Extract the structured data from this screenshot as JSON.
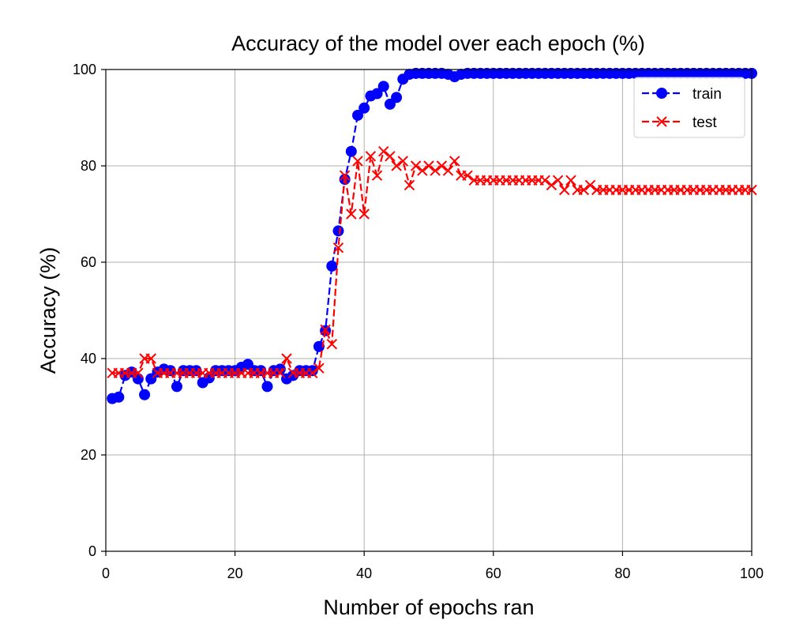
{
  "chart_data": {
    "type": "line",
    "title": "Accuracy of the model over each epoch (%)",
    "xlabel": "Number of epochs ran",
    "ylabel": "Accuracy (%)",
    "xlim": [
      0,
      100
    ],
    "ylim": [
      0,
      100
    ],
    "xticks": [
      0,
      20,
      40,
      60,
      80,
      100
    ],
    "yticks": [
      0,
      20,
      40,
      60,
      80,
      100
    ],
    "grid": true,
    "legend_position": "top-right",
    "x": [
      1,
      2,
      3,
      4,
      5,
      6,
      7,
      8,
      9,
      10,
      11,
      12,
      13,
      14,
      15,
      16,
      17,
      18,
      19,
      20,
      21,
      22,
      23,
      24,
      25,
      26,
      27,
      28,
      29,
      30,
      31,
      32,
      33,
      34,
      35,
      36,
      37,
      38,
      39,
      40,
      41,
      42,
      43,
      44,
      45,
      46,
      47,
      48,
      49,
      50,
      51,
      52,
      53,
      54,
      55,
      56,
      57,
      58,
      59,
      60,
      61,
      62,
      63,
      64,
      65,
      66,
      67,
      68,
      69,
      70,
      71,
      72,
      73,
      74,
      75,
      76,
      77,
      78,
      79,
      80,
      81,
      82,
      83,
      84,
      85,
      86,
      87,
      88,
      89,
      90,
      91,
      92,
      93,
      94,
      95,
      96,
      97,
      98,
      99,
      100
    ],
    "series": [
      {
        "name": "train",
        "color": "#0000ff",
        "marker": "circle",
        "values": [
          31.7,
          32,
          36.5,
          37.2,
          35.8,
          32.5,
          35.8,
          37.2,
          37.8,
          37.5,
          34.2,
          37.5,
          37.5,
          37.5,
          35,
          36,
          37.5,
          37.5,
          37.5,
          37.5,
          38.2,
          38.8,
          37.5,
          37.5,
          34.2,
          37.5,
          37.8,
          35.8,
          36.5,
          37.5,
          37.5,
          37.5,
          42.5,
          45.8,
          59.2,
          66.5,
          77.2,
          83,
          90.5,
          92,
          94.5,
          95,
          96.5,
          92.8,
          94.2,
          98,
          99,
          99.2,
          99.2,
          99.2,
          99.2,
          99.2,
          99,
          98.5,
          99,
          99.2,
          99.2,
          99.2,
          99.2,
          99.2,
          99.2,
          99.2,
          99.2,
          99.2,
          99.2,
          99.2,
          99.2,
          99.2,
          99.2,
          99.2,
          99.2,
          99.2,
          99.2,
          99.2,
          99.2,
          99.2,
          99.2,
          99.2,
          99.2,
          99.2,
          99.2,
          99.2,
          99.2,
          99.2,
          99.2,
          99.2,
          99.2,
          99.2,
          99.2,
          99.2,
          99.2,
          99.2,
          99.2,
          99.2,
          99.2,
          99.2,
          99.2,
          99.2,
          99.2,
          99.2
        ]
      },
      {
        "name": "test",
        "color": "#ff0000",
        "marker": "x",
        "values": [
          37,
          37,
          37,
          37,
          37,
          40,
          40,
          37,
          37,
          37,
          37,
          37,
          37,
          37,
          37,
          37,
          37,
          37,
          37,
          37,
          37,
          37,
          37,
          37,
          37,
          37,
          37,
          40,
          37,
          37,
          37,
          37,
          38,
          46,
          43,
          63,
          78,
          70,
          81,
          70,
          82,
          78,
          83,
          82,
          80,
          81,
          76,
          80,
          79,
          80,
          79,
          80,
          79,
          81,
          78,
          78,
          77,
          77,
          77,
          77,
          77,
          77,
          77,
          77,
          77,
          77,
          77,
          77,
          76,
          77,
          75,
          77,
          75,
          75,
          76,
          75,
          75,
          75,
          75,
          75,
          75,
          75,
          75,
          75,
          75,
          75,
          75,
          75,
          75,
          75,
          75,
          75,
          75,
          75,
          75,
          75,
          75,
          75,
          75,
          75
        ]
      }
    ]
  }
}
